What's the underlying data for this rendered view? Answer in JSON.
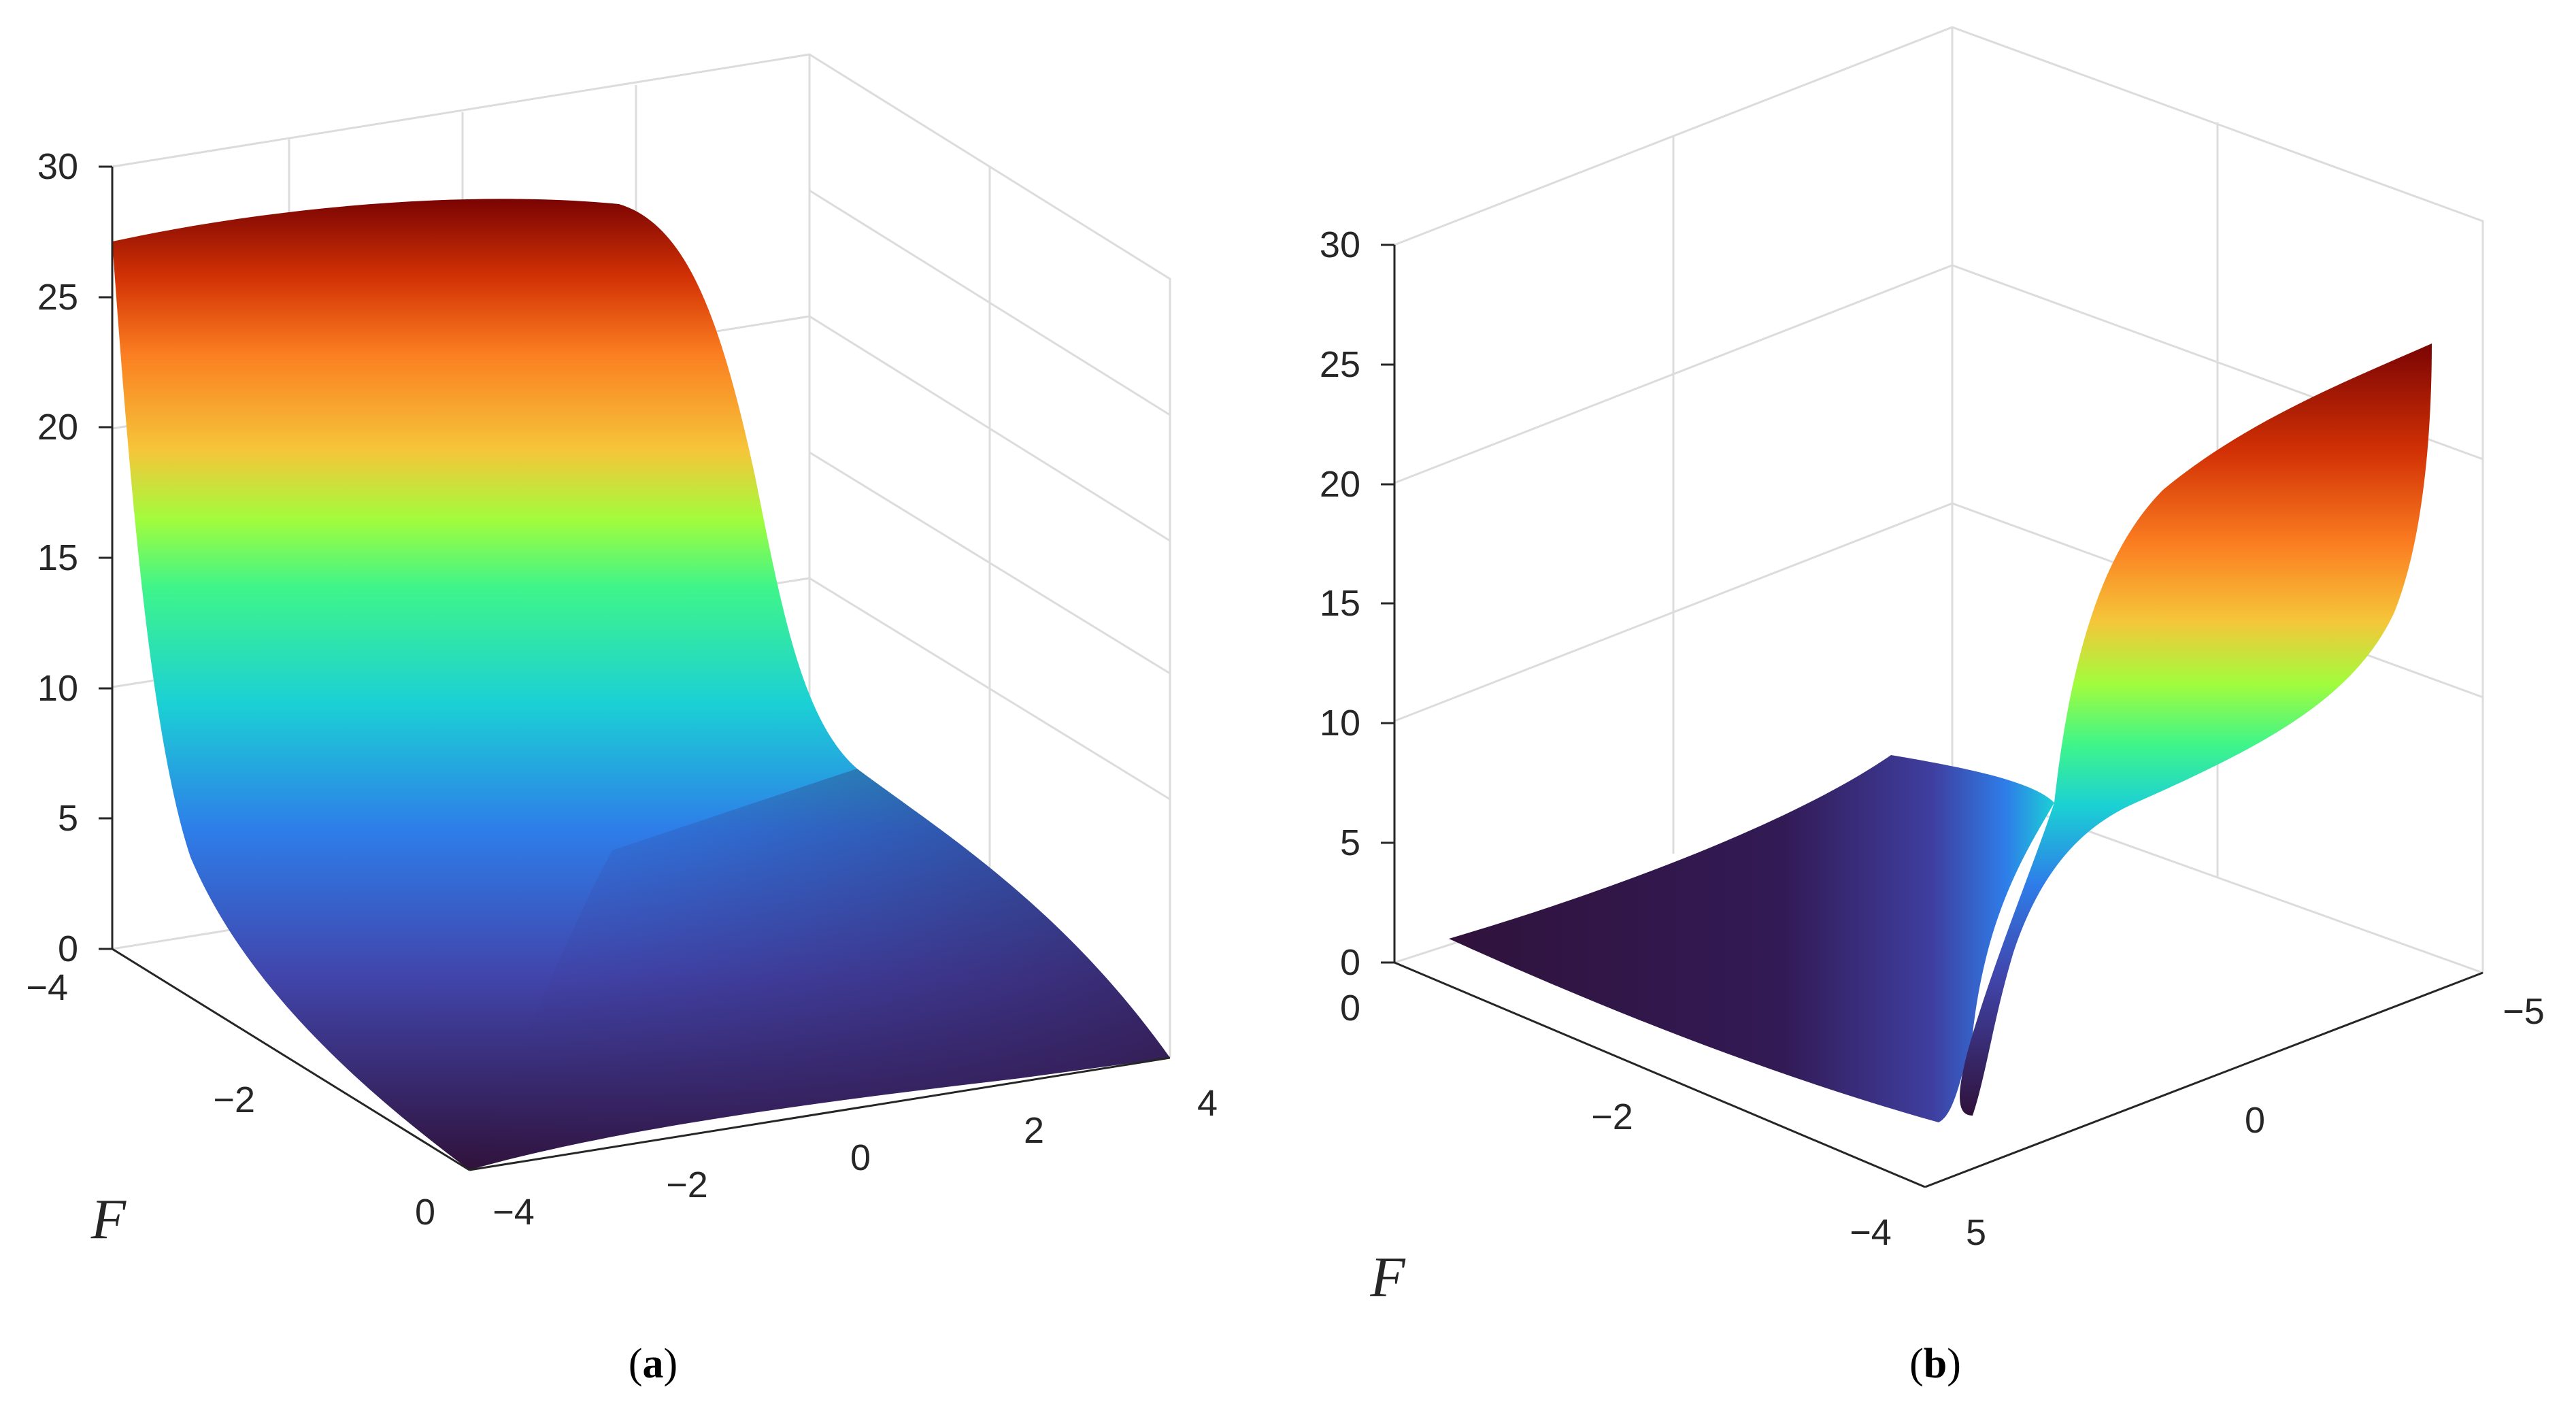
{
  "chart_data": [
    {
      "panel": "a",
      "type": "surface",
      "caption_letter": "a",
      "axis_name": "F",
      "zlim": [
        0,
        30
      ],
      "z_ticks": [
        "0",
        "5",
        "10",
        "15",
        "20",
        "25",
        "30"
      ],
      "f_ticks": [
        "−4",
        "−2",
        "0"
      ],
      "x_ticks": [
        "−4",
        "−2",
        "0",
        "2",
        "4"
      ],
      "surface_shape": "sigmoid step: high plateau (~27) for x < 0, falling through ~14 near x = 0 to ~0 for x > 0",
      "peak_value": 27,
      "min_value": 0,
      "colormap": [
        "#30123b",
        "#4145ab",
        "#2e7de9",
        "#1bd0d5",
        "#3ff58a",
        "#a2fc3c",
        "#f5c63a",
        "#fb7e21",
        "#d23105",
        "#7a0403"
      ]
    },
    {
      "panel": "b",
      "type": "surface",
      "caption_letter": "b",
      "axis_name": "F",
      "zlim": [
        0,
        30
      ],
      "z_ticks": [
        "0",
        "5",
        "10",
        "15",
        "20",
        "25",
        "30"
      ],
      "f_ticks": [
        "0",
        "−2",
        "−4"
      ],
      "x_ticks": [
        "5",
        "0",
        "−5"
      ],
      "surface_shape": "flat near 0 on one side, sharp rise through a pinch near x = 0 up to ~25 at the far corner",
      "peak_value": 25,
      "min_value": 0,
      "colormap": [
        "#30123b",
        "#4145ab",
        "#2e7de9",
        "#1bd0d5",
        "#3ff58a",
        "#a2fc3c",
        "#f5c63a",
        "#fb7e21",
        "#d23105",
        "#7a0403"
      ]
    }
  ],
  "captions": {
    "a": {
      "open": "(",
      "letter": "a",
      "close": ")"
    },
    "b": {
      "open": "(",
      "letter": "b",
      "close": ")"
    }
  }
}
